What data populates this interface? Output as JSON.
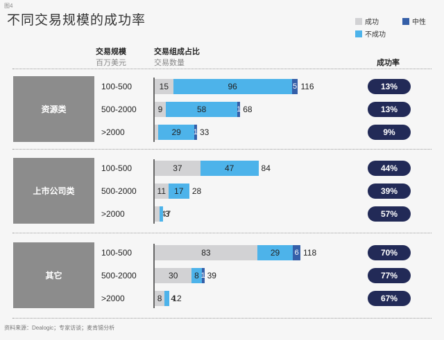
{
  "fig_label": "图4",
  "title": "不同交易规模的成功率",
  "legend": {
    "success": "成功",
    "neutral": "中性",
    "fail": "不成功"
  },
  "headers": {
    "size": "交易规模",
    "size_sub": "百万美元",
    "composition": "交易组成占比",
    "composition_sub": "交易数量",
    "rate": "成功率"
  },
  "colors": {
    "success": "#d2d2d4",
    "fail": "#4db3ea",
    "neutral": "#355fa8",
    "rate_pill": "#222a57",
    "group_box": "#8c8c8c"
  },
  "chart_data": {
    "type": "bar",
    "stacked": true,
    "orientation": "horizontal",
    "series_order": [
      "成功",
      "不成功",
      "中性"
    ],
    "groups": [
      {
        "name": "资源类",
        "rows": [
          {
            "size": "100-500",
            "success": 15,
            "fail": 96,
            "neutral": 5,
            "total": 116,
            "rate": "13%"
          },
          {
            "size": "500-2000",
            "success": 9,
            "fail": 58,
            "neutral": 1,
            "total": 68,
            "rate": "13%"
          },
          {
            "size": ">2000",
            "success": 3,
            "fail": 29,
            "neutral": 1,
            "total": 33,
            "rate": "9%"
          }
        ]
      },
      {
        "name": "上市公司类",
        "rows": [
          {
            "size": "100-500",
            "success": 37,
            "fail": 47,
            "neutral": 0,
            "total": 84,
            "rate": "44%"
          },
          {
            "size": "500-2000",
            "success": 11,
            "fail": 17,
            "neutral": 0,
            "total": 28,
            "rate": "39%"
          },
          {
            "size": ">2000",
            "success": 4,
            "fail": 3,
            "neutral": 0,
            "total": 7,
            "rate": "57%"
          }
        ]
      },
      {
        "name": "其它",
        "rows": [
          {
            "size": "100-500",
            "success": 83,
            "fail": 29,
            "neutral": 6,
            "total": 118,
            "rate": "70%"
          },
          {
            "size": "500-2000",
            "success": 30,
            "fail": 8,
            "neutral": 1,
            "total": 39,
            "rate": "77%"
          },
          {
            "size": ">2000",
            "success": 8,
            "fail": 4,
            "neutral": 0,
            "total": 12,
            "rate": "67%"
          }
        ]
      }
    ]
  },
  "footnote": "资料来源：Dealogic；专家访谈；麦肯锡分析"
}
